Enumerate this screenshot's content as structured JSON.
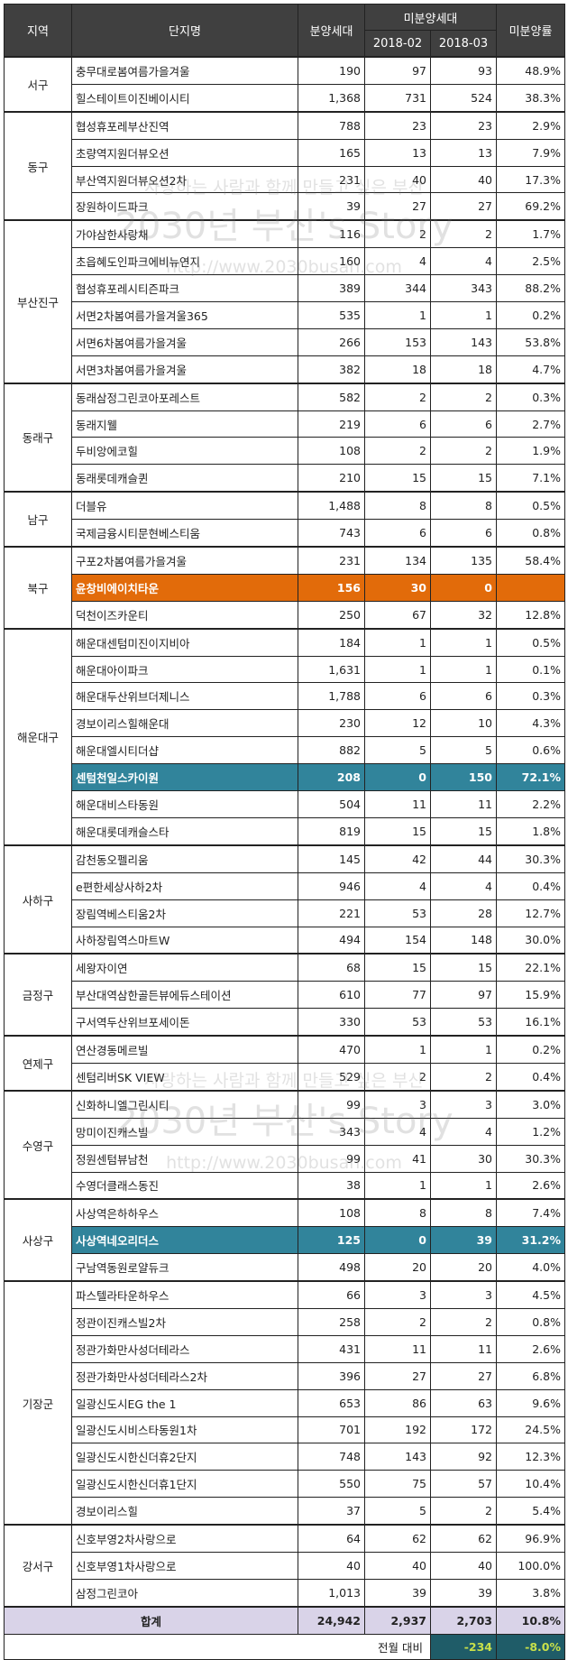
{
  "header": {
    "region": "지역",
    "name": "단지명",
    "total": "분양세대",
    "unsold": "미분양세대",
    "month1": "2018-02",
    "month2": "2018-03",
    "rate": "미분양률"
  },
  "colors": {
    "header_bg": "#404040",
    "highlight_orange": "#e26b0a",
    "highlight_teal": "#31849b",
    "total_bg": "#d9d3e8",
    "mom_bg": "#1f5c68",
    "mom_text": "#c8e04a"
  },
  "groups": [
    {
      "region": "서구",
      "rows": [
        [
          "충무대로봄여름가을겨울",
          "190",
          "97",
          "93",
          "48.9%"
        ],
        [
          "힐스테이트이진베이시티",
          "1,368",
          "731",
          "524",
          "38.3%"
        ]
      ]
    },
    {
      "region": "동구",
      "rows": [
        [
          "협성휴포레부산진역",
          "788",
          "23",
          "23",
          "2.9%"
        ],
        [
          "초량역지원더뷰오션",
          "165",
          "13",
          "13",
          "7.9%"
        ],
        [
          "부산역지원더뷰오션2차",
          "231",
          "40",
          "40",
          "17.3%"
        ],
        [
          "장원하이드파크",
          "39",
          "27",
          "27",
          "69.2%"
        ]
      ]
    },
    {
      "region": "부산진구",
      "rows": [
        [
          "가야삼한사랑채",
          "116",
          "2",
          "2",
          "1.7%"
        ],
        [
          "초읍혜도인파크에비뉴연지",
          "160",
          "4",
          "4",
          "2.5%"
        ],
        [
          "협성휴포레시티즌파크",
          "389",
          "344",
          "343",
          "88.2%"
        ],
        [
          "서면2차봄여름가을겨울365",
          "535",
          "1",
          "1",
          "0.2%"
        ],
        [
          "서면6차봄여름가을겨울",
          "266",
          "153",
          "143",
          "53.8%"
        ],
        [
          "서면3차봄여름가을겨울",
          "382",
          "18",
          "18",
          "4.7%"
        ]
      ]
    },
    {
      "region": "동래구",
      "rows": [
        [
          "동래삼정그린코아포레스트",
          "582",
          "2",
          "2",
          "0.3%"
        ],
        [
          "동래지웰",
          "219",
          "6",
          "6",
          "2.7%"
        ],
        [
          "두비앙에코힐",
          "108",
          "2",
          "2",
          "1.9%"
        ],
        [
          "동래롯데캐슬퀸",
          "210",
          "15",
          "15",
          "7.1%"
        ]
      ]
    },
    {
      "region": "남구",
      "rows": [
        [
          "더블유",
          "1,488",
          "8",
          "8",
          "0.5%"
        ],
        [
          "국제금융시티문현베스티움",
          "743",
          "6",
          "6",
          "0.8%"
        ]
      ]
    },
    {
      "region": "북구",
      "rows": [
        [
          "구포2차봄여름가을겨울",
          "231",
          "134",
          "135",
          "58.4%"
        ],
        [
          "윤창비에이치타운",
          "156",
          "30",
          "0",
          "",
          "orange"
        ],
        [
          "덕천이즈카운티",
          "250",
          "67",
          "32",
          "12.8%"
        ]
      ]
    },
    {
      "region": "해운대구",
      "rows": [
        [
          "해운대센텀미진이지비아",
          "184",
          "1",
          "1",
          "0.5%"
        ],
        [
          "해운대아이파크",
          "1,631",
          "1",
          "1",
          "0.1%"
        ],
        [
          "해운대두산위브더제니스",
          "1,788",
          "6",
          "6",
          "0.3%"
        ],
        [
          "경보이리스힐해운대",
          "230",
          "12",
          "10",
          "4.3%"
        ],
        [
          "해운대엘시티더샵",
          "882",
          "5",
          "5",
          "0.6%"
        ],
        [
          "센텀천일스카이원",
          "208",
          "0",
          "150",
          "72.1%",
          "teal"
        ],
        [
          "해운대비스타동원",
          "504",
          "11",
          "11",
          "2.2%"
        ],
        [
          "해운대롯데캐슬스타",
          "819",
          "15",
          "15",
          "1.8%"
        ]
      ]
    },
    {
      "region": "사하구",
      "rows": [
        [
          "감천동오펠리움",
          "145",
          "42",
          "44",
          "30.3%"
        ],
        [
          "e편한세상사하2차",
          "946",
          "4",
          "4",
          "0.4%"
        ],
        [
          "장림역베스티움2차",
          "221",
          "53",
          "28",
          "12.7%"
        ],
        [
          "사하장림역스마트W",
          "494",
          "154",
          "148",
          "30.0%"
        ]
      ]
    },
    {
      "region": "금정구",
      "rows": [
        [
          "세왕자이연",
          "68",
          "15",
          "15",
          "22.1%"
        ],
        [
          "부산대역삼한골든뷰에듀스테이션",
          "610",
          "77",
          "97",
          "15.9%"
        ],
        [
          "구서역두산위브포세이돈",
          "330",
          "53",
          "53",
          "16.1%"
        ]
      ]
    },
    {
      "region": "연제구",
      "rows": [
        [
          "연산경동메르빌",
          "470",
          "1",
          "1",
          "0.2%"
        ],
        [
          "센텀리버SK VIEW",
          "529",
          "2",
          "2",
          "0.4%"
        ]
      ]
    },
    {
      "region": "수영구",
      "rows": [
        [
          "신화하니엘그린시티",
          "99",
          "3",
          "3",
          "3.0%"
        ],
        [
          "망미이진캐스빌",
          "343",
          "4",
          "4",
          "1.2%"
        ],
        [
          "정원센텀뷰남천",
          "99",
          "41",
          "30",
          "30.3%"
        ],
        [
          "수영더클래스동진",
          "38",
          "1",
          "1",
          "2.6%"
        ]
      ]
    },
    {
      "region": "사상구",
      "rows": [
        [
          "사상역은하하우스",
          "108",
          "8",
          "8",
          "7.4%"
        ],
        [
          "사상역네오리더스",
          "125",
          "0",
          "39",
          "31.2%",
          "teal"
        ],
        [
          "구남역동원로얄듀크",
          "498",
          "20",
          "20",
          "4.0%"
        ]
      ]
    },
    {
      "region": "기장군",
      "rows": [
        [
          "파스텔라타운하우스",
          "66",
          "3",
          "3",
          "4.5%"
        ],
        [
          "정관이진캐스빌2차",
          "258",
          "2",
          "2",
          "0.8%"
        ],
        [
          "정관가화만사성더테라스",
          "431",
          "11",
          "11",
          "2.6%"
        ],
        [
          "정관가화만사성더테라스2차",
          "396",
          "27",
          "27",
          "6.8%"
        ],
        [
          "일광신도시EG the 1",
          "653",
          "86",
          "63",
          "9.6%"
        ],
        [
          "일광신도시비스타동원1차",
          "701",
          "192",
          "172",
          "24.5%"
        ],
        [
          "일광신도시한신더휴2단지",
          "748",
          "143",
          "92",
          "12.3%"
        ],
        [
          "일광신도시한신더휴1단지",
          "550",
          "75",
          "57",
          "10.4%"
        ],
        [
          "경보이리스힐",
          "37",
          "5",
          "2",
          "5.4%"
        ]
      ]
    },
    {
      "region": "강서구",
      "rows": [
        [
          "신호부영2차사랑으로",
          "64",
          "62",
          "62",
          "96.9%"
        ],
        [
          "신호부영1차사랑으로",
          "40",
          "40",
          "40",
          "100.0%"
        ],
        [
          "삼정그린코아",
          "1,013",
          "39",
          "39",
          "3.8%"
        ]
      ]
    }
  ],
  "total": {
    "label": "합계",
    "total": "24,942",
    "month1": "2,937",
    "month2": "2,703",
    "rate": "10.8%"
  },
  "mom": {
    "label": "전월 대비",
    "diff": "-234",
    "rate": "-8.0%"
  },
  "watermark": {
    "line1": "사랑하는 사람과 함께 만들고 싶은 부산",
    "line2": "2030년 부산's Story",
    "line3": "http://www.2030busan.com"
  }
}
